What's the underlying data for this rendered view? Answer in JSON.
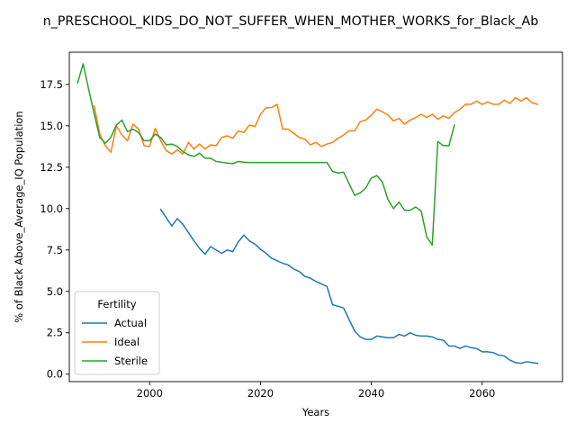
{
  "chart_data": {
    "type": "line",
    "title": "n_PRESCHOOL_KIDS_DO_NOT_SUFFER_WHEN_MOTHER_WORKS_for_Black_Ab",
    "xlabel": "Years",
    "ylabel": "% of Black Above_Average_IQ Population",
    "xlim": [
      1985.5,
      2074.5
    ],
    "ylim": [
      -0.45,
      19.45
    ],
    "xticks": [
      2000,
      2020,
      2040,
      2060
    ],
    "yticks": [
      0.0,
      2.5,
      5.0,
      7.5,
      10.0,
      12.5,
      15.0,
      17.5
    ],
    "grid": false,
    "legend": {
      "title": "Fertility",
      "placement": "lower-left"
    },
    "series": [
      {
        "name": "Actual",
        "color": "#1f77b4",
        "x": [
          2002,
          2003,
          2004,
          2005,
          2006,
          2007,
          2008,
          2009,
          2010,
          2011,
          2012,
          2013,
          2014,
          2015,
          2016,
          2017,
          2018,
          2019,
          2020,
          2021,
          2022,
          2023,
          2024,
          2025,
          2026,
          2027,
          2028,
          2029,
          2030,
          2031,
          2032,
          2033,
          2034,
          2035,
          2036,
          2037,
          2038,
          2039,
          2040,
          2041,
          2042,
          2043,
          2044,
          2045,
          2046,
          2047,
          2048,
          2049,
          2050,
          2051,
          2052,
          2053,
          2054,
          2055,
          2056,
          2057,
          2058,
          2059,
          2060,
          2061,
          2062,
          2063,
          2064,
          2065,
          2066,
          2067,
          2068,
          2069,
          2070
        ],
        "values": [
          9.95,
          9.45,
          8.95,
          9.4,
          9.05,
          8.55,
          8.05,
          7.6,
          7.25,
          7.7,
          7.5,
          7.3,
          7.5,
          7.4,
          8.0,
          8.4,
          8.05,
          7.85,
          7.55,
          7.3,
          7.0,
          6.85,
          6.7,
          6.6,
          6.35,
          6.2,
          5.9,
          5.8,
          5.6,
          5.45,
          5.3,
          4.2,
          4.1,
          4.0,
          3.3,
          2.6,
          2.25,
          2.1,
          2.1,
          2.3,
          2.25,
          2.2,
          2.2,
          2.4,
          2.3,
          2.5,
          2.35,
          2.3,
          2.3,
          2.25,
          2.1,
          2.05,
          1.7,
          1.7,
          1.55,
          1.7,
          1.6,
          1.55,
          1.35,
          1.35,
          1.3,
          1.15,
          1.1,
          0.85,
          0.7,
          0.65,
          0.75,
          0.7,
          0.65
        ]
      },
      {
        "name": "Ideal",
        "color": "#ff7f0e",
        "x": [
          1990,
          1991,
          1992,
          1993,
          1994,
          1995,
          1996,
          1997,
          1998,
          1999,
          2000,
          2001,
          2002,
          2003,
          2004,
          2005,
          2006,
          2007,
          2008,
          2009,
          2010,
          2011,
          2012,
          2013,
          2014,
          2015,
          2016,
          2017,
          2018,
          2019,
          2020,
          2021,
          2022,
          2023,
          2024,
          2025,
          2026,
          2027,
          2028,
          2029,
          2030,
          2031,
          2032,
          2033,
          2034,
          2035,
          2036,
          2037,
          2038,
          2039,
          2040,
          2041,
          2042,
          2043,
          2044,
          2045,
          2046,
          2047,
          2048,
          2049,
          2050,
          2051,
          2052,
          2053,
          2054,
          2055,
          2056,
          2057,
          2058,
          2059,
          2060,
          2061,
          2062,
          2063,
          2064,
          2065,
          2066,
          2067,
          2068,
          2069,
          2070
        ],
        "values": [
          16.2,
          14.5,
          13.8,
          13.4,
          15.0,
          14.45,
          14.1,
          15.1,
          14.8,
          13.8,
          13.75,
          14.85,
          14.1,
          13.5,
          13.3,
          13.55,
          13.3,
          14.0,
          13.6,
          13.9,
          13.6,
          13.85,
          13.8,
          14.3,
          14.4,
          14.25,
          14.7,
          14.6,
          15.05,
          14.95,
          15.7,
          16.1,
          16.1,
          16.3,
          14.8,
          14.8,
          14.55,
          14.3,
          14.2,
          13.85,
          14.0,
          13.75,
          13.9,
          14.0,
          14.25,
          14.45,
          14.7,
          14.7,
          15.25,
          15.35,
          15.65,
          16.0,
          15.85,
          15.65,
          15.3,
          15.45,
          15.1,
          15.35,
          15.5,
          15.7,
          15.5,
          15.7,
          15.4,
          15.6,
          15.45,
          15.8,
          16.0,
          16.3,
          16.3,
          16.5,
          16.3,
          16.45,
          16.3,
          16.3,
          16.55,
          16.35,
          16.7,
          16.5,
          16.7,
          16.4,
          16.3
        ]
      },
      {
        "name": "Sterile",
        "color": "#2ca02c",
        "x": [
          1987,
          1988,
          1989,
          1990,
          1991,
          1992,
          1993,
          1994,
          1995,
          1996,
          1997,
          1998,
          1999,
          2000,
          2001,
          2002,
          2003,
          2004,
          2005,
          2006,
          2007,
          2008,
          2009,
          2010,
          2011,
          2012,
          2013,
          2014,
          2015,
          2016,
          2017,
          2018,
          2019,
          2020,
          2021,
          2022,
          2023,
          2024,
          2025,
          2026,
          2027,
          2028,
          2029,
          2030,
          2031,
          2032,
          2033,
          2034,
          2035,
          2036,
          2037,
          2038,
          2039,
          2040,
          2041,
          2042,
          2043,
          2044,
          2045,
          2046,
          2047,
          2048,
          2049,
          2050,
          2051,
          2052,
          2053,
          2054,
          2055
        ],
        "values": [
          17.6,
          18.75,
          17.2,
          15.7,
          14.3,
          13.95,
          14.3,
          15.05,
          15.35,
          14.65,
          14.8,
          14.6,
          14.1,
          14.1,
          14.5,
          14.3,
          13.85,
          13.9,
          13.75,
          13.45,
          13.25,
          13.15,
          13.35,
          13.05,
          13.05,
          12.85,
          12.8,
          12.75,
          12.72,
          12.85,
          12.8,
          12.78,
          12.78,
          12.78,
          12.78,
          12.78,
          12.78,
          12.78,
          12.78,
          12.78,
          12.78,
          12.78,
          12.78,
          12.78,
          12.78,
          12.78,
          12.25,
          12.15,
          12.2,
          11.5,
          10.8,
          10.95,
          11.25,
          11.85,
          12.0,
          11.6,
          10.55,
          10.0,
          10.4,
          9.9,
          9.9,
          10.1,
          9.85,
          8.3,
          7.8,
          14.05,
          13.8,
          13.8,
          15.05
        ]
      }
    ]
  }
}
